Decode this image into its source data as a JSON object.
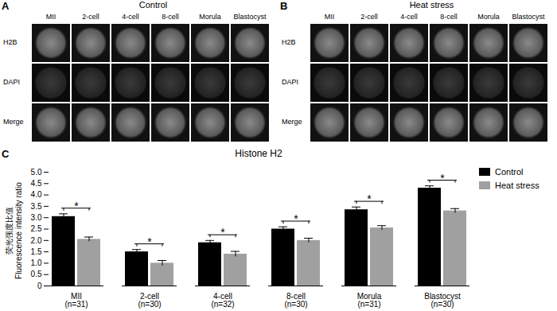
{
  "panels": [
    {
      "label": "A",
      "title": "Control",
      "rows": [
        "H2B",
        "DAPI",
        "Merge"
      ],
      "columns": [
        "MII",
        "2-cell",
        "4-cell",
        "8-cell",
        "Morula",
        "Blastocyst"
      ]
    },
    {
      "label": "B",
      "title": "Heat stress",
      "rows": [
        "H2B",
        "DAPI",
        "Merge"
      ],
      "columns": [
        "MII",
        "2-cell",
        "4-cell",
        "8-cell",
        "Morula",
        "Blastocyst"
      ]
    }
  ],
  "chart_panel_label": "C",
  "chart_data": {
    "type": "bar",
    "title": "Histone H2",
    "ylabel": "荧光强度比值\nFluorescence intensity ratio",
    "categories": [
      "MII\n(n=31)",
      "2-cell\n(n=30)",
      "4-cell\n(n=32)",
      "8-cell\n(n=30)",
      "Morula\n(n=31)",
      "Blastocyst\n(n=30)"
    ],
    "series": [
      {
        "name": "Control",
        "color": "#000000",
        "values": [
          3.05,
          1.5,
          1.9,
          2.5,
          3.35,
          4.3
        ],
        "errors": [
          0.12,
          0.1,
          0.1,
          0.1,
          0.12,
          0.1
        ]
      },
      {
        "name": "Heat stress",
        "color": "#a0a0a0",
        "values": [
          2.05,
          1.0,
          1.4,
          2.0,
          2.55,
          3.3
        ],
        "errors": [
          0.1,
          0.12,
          0.12,
          0.1,
          0.1,
          0.1
        ]
      }
    ],
    "annotations": [
      {
        "category": "MII\n(n=31)",
        "text": "*"
      },
      {
        "category": "2-cell\n(n=30)",
        "text": "*"
      },
      {
        "category": "4-cell\n(n=32)",
        "text": "*"
      },
      {
        "category": "8-cell\n(n=30)",
        "text": "*"
      },
      {
        "category": "Morula\n(n=31)",
        "text": "*"
      },
      {
        "category": "Blastocyst\n(n=30)",
        "text": "*"
      }
    ],
    "ylim": [
      0,
      5
    ],
    "yticks": [
      0,
      0.5,
      {
        "value": 1,
        "label": "1.0"
      },
      1.5,
      {
        "value": 2,
        "label": "2.0"
      },
      2.5,
      {
        "value": 3,
        "label": "3.0"
      },
      3.5,
      {
        "value": 4,
        "label": "4.0"
      },
      4.5,
      {
        "value": 5,
        "label": "5.0"
      }
    ],
    "grid": false,
    "legend": "top-right"
  }
}
